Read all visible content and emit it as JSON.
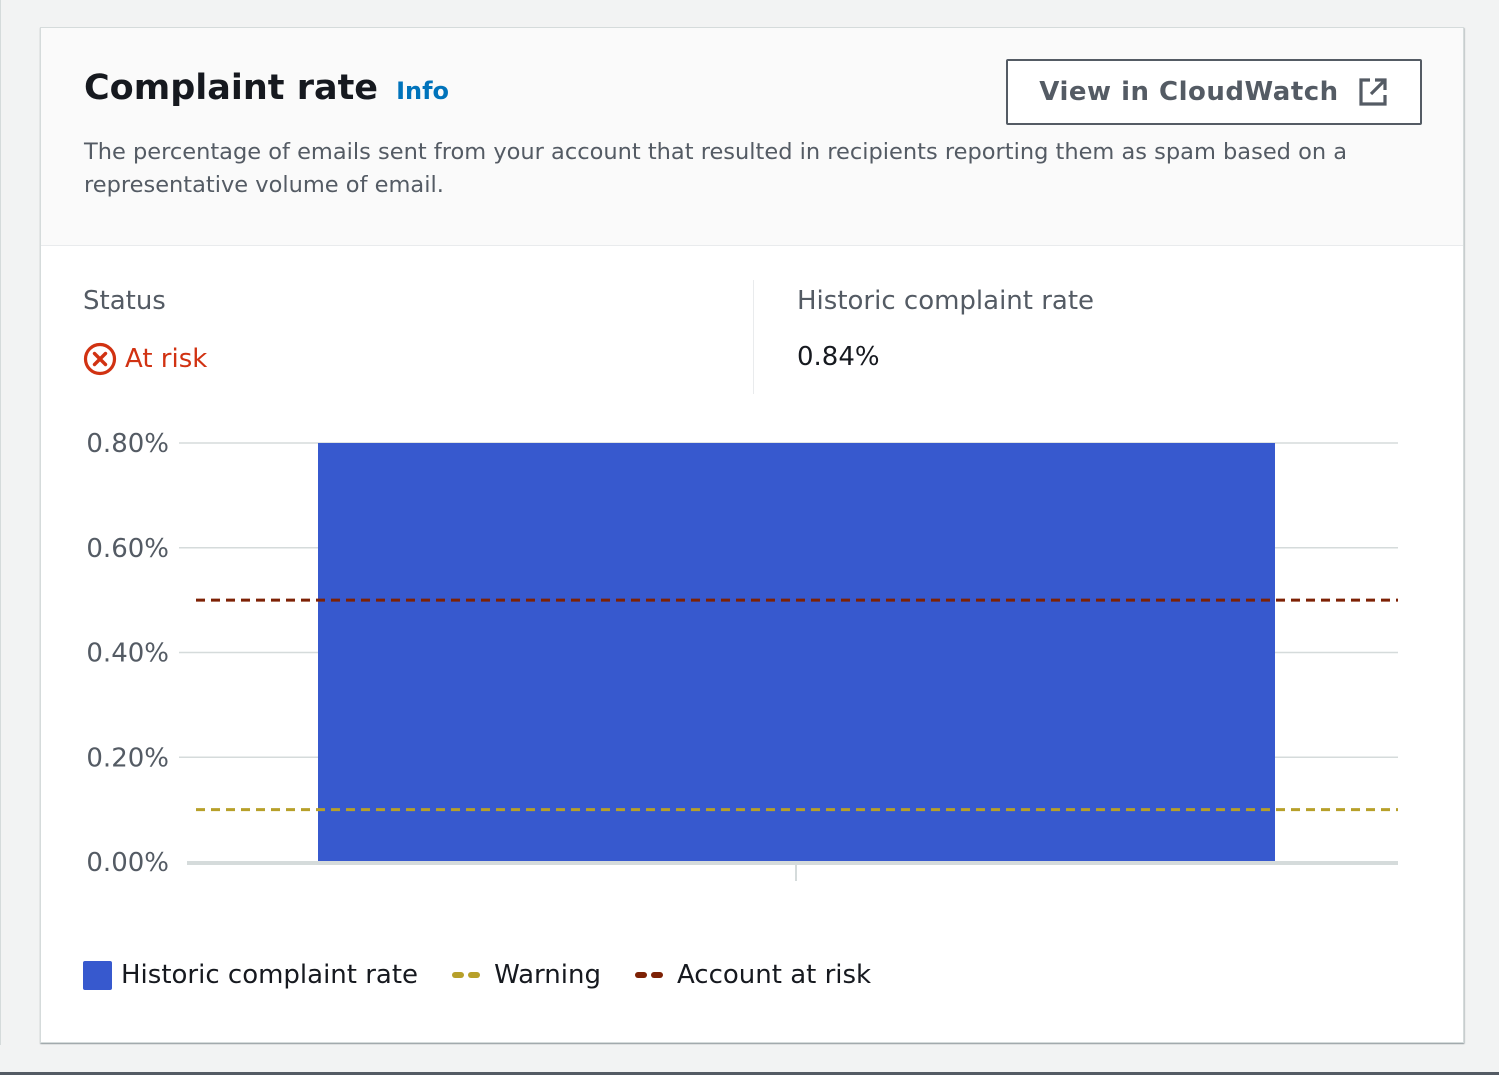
{
  "card": {
    "title": "Complaint rate",
    "info_label": "Info",
    "description": "The percentage of emails sent from your account that resulted in recipients reporting them as spam based on a representative volume of email.",
    "cloudwatch_button_label": "View in CloudWatch",
    "external_link_icon": "external-link-icon"
  },
  "status": {
    "label": "Status",
    "value": "At risk",
    "icon": "status-error-icon",
    "color": "#d13212"
  },
  "historic": {
    "label": "Historic complaint rate",
    "value": "0.84%"
  },
  "colors": {
    "bar": "#3759ce",
    "warning": "#b7a02a",
    "account_at_risk": "#7d2105",
    "grid": "#d5dbdb"
  },
  "chart_data": {
    "type": "bar",
    "ylim": [
      0,
      0.8
    ],
    "yticks": [
      0,
      0.2,
      0.4,
      0.6,
      0.8
    ],
    "ytick_labels": [
      "0.00%",
      "0.20%",
      "0.40%",
      "0.60%",
      "0.80%"
    ],
    "grid": true,
    "series": [
      {
        "name": "Historic complaint rate",
        "values": [
          0.84
        ]
      }
    ],
    "thresholds": [
      {
        "name": "Warning",
        "value": 0.1
      },
      {
        "name": "Account at risk",
        "value": 0.5
      }
    ],
    "legend_position": "bottom-left"
  }
}
